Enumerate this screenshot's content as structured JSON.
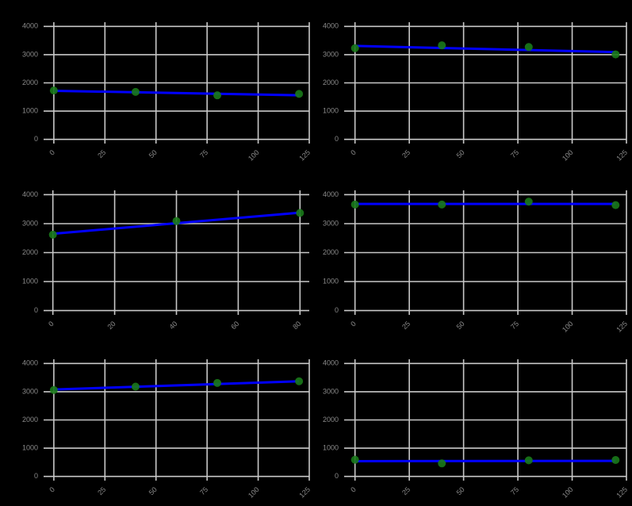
{
  "chart_data": [
    {
      "type": "scatter",
      "x": [
        0,
        40,
        80,
        120
      ],
      "values": [
        1730,
        1680,
        1560,
        1610
      ],
      "color": "#1a7a1a",
      "fit": {
        "x": [
          0,
          120
        ],
        "values": [
          1720,
          1560
        ],
        "color": "#0000ff"
      },
      "xlim": [
        -5,
        125
      ],
      "xticks": [
        0,
        25,
        50,
        75,
        100,
        125
      ],
      "ylim": [
        -150,
        4150
      ],
      "yticks": [
        0,
        1000,
        2000,
        3000,
        4000
      ],
      "grid": true
    },
    {
      "type": "scatter",
      "x": [
        0,
        40,
        80,
        120
      ],
      "values": [
        3230,
        3330,
        3270,
        3010
      ],
      "color": "#1a7a1a",
      "fit": {
        "x": [
          0,
          120
        ],
        "values": [
          3310,
          3090
        ],
        "color": "#0000ff"
      },
      "xlim": [
        -5,
        125
      ],
      "xticks": [
        0,
        25,
        50,
        75,
        100,
        125
      ],
      "ylim": [
        -150,
        4150
      ],
      "yticks": [
        0,
        1000,
        2000,
        3000,
        4000
      ],
      "grid": true
    },
    {
      "type": "scatter",
      "x": [
        0,
        40,
        80
      ],
      "values": [
        2620,
        3090,
        3370
      ],
      "color": "#1a7a1a",
      "fit": {
        "x": [
          0,
          80
        ],
        "values": [
          2650,
          3380
        ],
        "color": "#0000ff"
      },
      "xlim": [
        -3,
        83
      ],
      "xticks": [
        0,
        20,
        40,
        60,
        80
      ],
      "ylim": [
        -150,
        4150
      ],
      "yticks": [
        0,
        1000,
        2000,
        3000,
        4000
      ],
      "grid": true
    },
    {
      "type": "scatter",
      "x": [
        0,
        40,
        80,
        120
      ],
      "values": [
        3660,
        3660,
        3760,
        3640
      ],
      "color": "#1a7a1a",
      "fit": {
        "x": [
          0,
          120
        ],
        "values": [
          3680,
          3680
        ],
        "color": "#0000ff"
      },
      "xlim": [
        -5,
        125
      ],
      "xticks": [
        0,
        25,
        50,
        75,
        100,
        125
      ],
      "ylim": [
        -150,
        4150
      ],
      "yticks": [
        0,
        1000,
        2000,
        3000,
        4000
      ],
      "grid": true
    },
    {
      "type": "scatter",
      "x": [
        0,
        40,
        80,
        120
      ],
      "values": [
        3060,
        3180,
        3310,
        3370
      ],
      "color": "#1a7a1a",
      "fit": {
        "x": [
          0,
          120
        ],
        "values": [
          3080,
          3370
        ],
        "color": "#0000ff"
      },
      "xlim": [
        -5,
        125
      ],
      "xticks": [
        0,
        25,
        50,
        75,
        100,
        125
      ],
      "ylim": [
        -150,
        4150
      ],
      "yticks": [
        0,
        1000,
        2000,
        3000,
        4000
      ],
      "grid": true
    },
    {
      "type": "scatter",
      "x": [
        0,
        40,
        80,
        120
      ],
      "values": [
        590,
        460,
        570,
        580
      ],
      "color": "#1a7a1a",
      "fit": {
        "x": [
          0,
          120
        ],
        "values": [
          540,
          550
        ],
        "color": "#0000ff"
      },
      "xlim": [
        -5,
        125
      ],
      "xticks": [
        0,
        25,
        50,
        75,
        100,
        125
      ],
      "ylim": [
        -150,
        4150
      ],
      "yticks": [
        0,
        1000,
        2000,
        3000,
        4000
      ],
      "grid": true
    }
  ]
}
